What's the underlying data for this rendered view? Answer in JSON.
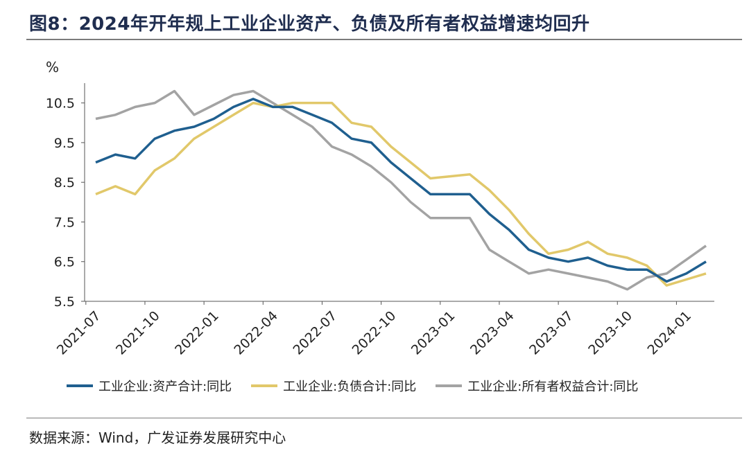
{
  "header": {
    "title": "图8：2024年开年规上工业企业资产、负债及所有者权益增速均回升"
  },
  "footer": {
    "source": "数据来源：Wind，广发证券发展研究中心"
  },
  "chart_data": {
    "type": "line",
    "title": "",
    "ylabel": "%",
    "xlabel": "",
    "ylim": [
      5.5,
      11.0
    ],
    "yticks": [
      "10.5",
      "9.5",
      "8.5",
      "7.5",
      "6.5",
      "5.5"
    ],
    "x": [
      "2021-07",
      "2021-08",
      "2021-09",
      "2021-10",
      "2021-11",
      "2021-12",
      "2022-01",
      "2022-02",
      "2022-03",
      "2022-04",
      "2022-05",
      "2022-06",
      "2022-07",
      "2022-08",
      "2022-09",
      "2022-10",
      "2022-11",
      "2022-12",
      "2023-01",
      "2023-02",
      "2023-03",
      "2023-04",
      "2023-05",
      "2023-06",
      "2023-07",
      "2023-08",
      "2023-09",
      "2023-10",
      "2023-11",
      "2023-12",
      "2024-01",
      "2024-02"
    ],
    "xtick_labels": [
      "2021-07",
      "2021-10",
      "2022-01",
      "2022-04",
      "2022-07",
      "2022-10",
      "2023-01",
      "2023-04",
      "2023-07",
      "2023-10",
      "2024-01"
    ],
    "grid": false,
    "legend_position": "bottom",
    "series": [
      {
        "name": "工业企业:资产合计:同比",
        "color": "#1f5f8f",
        "values": [
          9.0,
          9.2,
          9.1,
          9.6,
          9.8,
          9.9,
          10.1,
          10.4,
          10.6,
          10.4,
          10.4,
          10.2,
          10.0,
          9.6,
          9.5,
          9.0,
          8.6,
          8.2,
          8.2,
          8.2,
          7.7,
          7.3,
          6.8,
          6.6,
          6.5,
          6.6,
          6.4,
          6.3,
          6.3,
          6.0,
          6.2,
          6.5
        ]
      },
      {
        "name": "工业企业:负债合计:同比",
        "color": "#e1c86a",
        "values": [
          8.2,
          8.4,
          8.2,
          8.8,
          9.1,
          9.6,
          9.9,
          10.2,
          10.5,
          10.4,
          10.5,
          10.5,
          10.5,
          10.0,
          9.9,
          9.4,
          9.0,
          8.6,
          8.65,
          8.7,
          8.3,
          7.8,
          7.2,
          6.7,
          6.8,
          7.0,
          6.7,
          6.6,
          6.4,
          5.9,
          6.05,
          6.2
        ]
      },
      {
        "name": "工业企业:所有者权益合计:同比",
        "color": "#a3a3a3",
        "values": [
          10.1,
          10.2,
          10.4,
          10.5,
          10.8,
          10.2,
          10.45,
          10.7,
          10.8,
          10.5,
          10.2,
          9.9,
          9.4,
          9.2,
          8.9,
          8.5,
          8.0,
          7.6,
          7.6,
          7.6,
          6.8,
          6.5,
          6.2,
          6.3,
          6.2,
          6.1,
          6.0,
          5.8,
          6.1,
          6.2,
          6.55,
          6.9
        ]
      }
    ]
  }
}
